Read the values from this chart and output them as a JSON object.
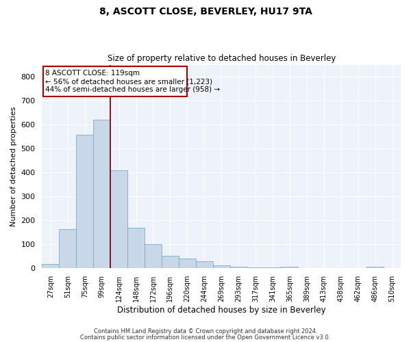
{
  "title": "8, ASCOTT CLOSE, BEVERLEY, HU17 9TA",
  "subtitle": "Size of property relative to detached houses in Beverley",
  "xlabel": "Distribution of detached houses by size in Beverley",
  "ylabel": "Number of detached properties",
  "bar_color": "#c8d8e8",
  "bar_edge_color": "#7aaac8",
  "background_color": "#eef2fb",
  "grid_color": "#ffffff",
  "categories": [
    "27sqm",
    "51sqm",
    "75sqm",
    "99sqm",
    "124sqm",
    "148sqm",
    "172sqm",
    "196sqm",
    "220sqm",
    "244sqm",
    "269sqm",
    "293sqm",
    "317sqm",
    "341sqm",
    "365sqm",
    "389sqm",
    "413sqm",
    "438sqm",
    "462sqm",
    "486sqm",
    "510sqm"
  ],
  "values": [
    18,
    165,
    558,
    620,
    410,
    170,
    100,
    53,
    40,
    30,
    12,
    8,
    5,
    5,
    8,
    0,
    0,
    0,
    0,
    8,
    0
  ],
  "ylim": [
    0,
    850
  ],
  "yticks": [
    0,
    100,
    200,
    300,
    400,
    500,
    600,
    700,
    800
  ],
  "red_line_bin": 4,
  "annotation_title": "8 ASCOTT CLOSE: 119sqm",
  "annotation_line1": "← 56% of detached houses are smaller (1,223)",
  "annotation_line2": "44% of semi-detached houses are larger (958) →",
  "footer_line1": "Contains HM Land Registry data © Crown copyright and database right 2024.",
  "footer_line2": "Contains public sector information licensed under the Open Government Licence v3.0."
}
